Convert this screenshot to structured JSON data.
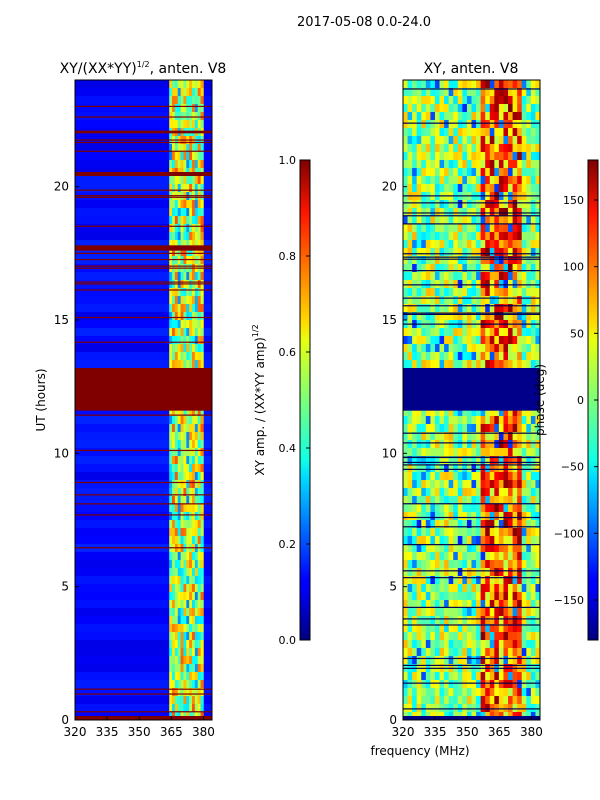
{
  "figure": {
    "suptitle": "2017-05-08 0.0-24.0",
    "xlabel": "frequency (MHz)"
  },
  "chart_data": [
    {
      "type": "heatmap",
      "title_main": "XY/(XX*YY)",
      "title_sup": "1/2",
      "title_tail": ", anten. V8",
      "xlabel": "",
      "ylabel": "UT (hours)",
      "xlim": [
        320,
        384
      ],
      "ylim": [
        0,
        24
      ],
      "xticks": [
        "320",
        "335",
        "350",
        "365",
        "380"
      ],
      "yticks": [
        "0",
        "5",
        "10",
        "15",
        "20"
      ],
      "colorbar": {
        "label_main": "XY amp. / (XX*YY amp)",
        "label_sup": "1/2",
        "range": [
          0.0,
          1.0
        ],
        "ticks": [
          "0.0",
          "0.2",
          "0.4",
          "0.6",
          "0.8",
          "1.0"
        ],
        "colormap": "jet"
      },
      "flagged_band_hours": [
        11.6,
        13.2
      ],
      "active_band_mhz": [
        364,
        380
      ]
    },
    {
      "type": "heatmap",
      "title": "XY, anten. V8",
      "ylim": [
        0,
        24
      ],
      "xlim": [
        320,
        384
      ],
      "xticks": [
        "320",
        "335",
        "350",
        "365",
        "380"
      ],
      "yticks": [
        "0",
        "5",
        "10",
        "15",
        "20"
      ],
      "colorbar": {
        "label": "phase (deg)",
        "range": [
          -180,
          180
        ],
        "ticks": [
          "150",
          "100",
          "50",
          "0",
          "−50",
          "−100",
          "−150"
        ],
        "colormap": "jet"
      },
      "flagged_band_hours": [
        11.6,
        13.2
      ]
    }
  ]
}
